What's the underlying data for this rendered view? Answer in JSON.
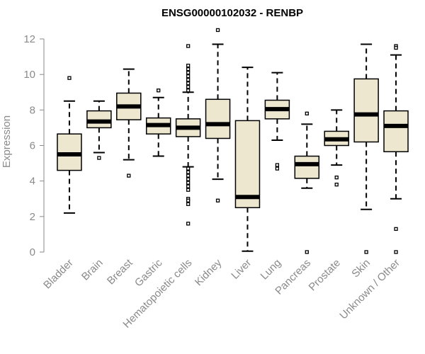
{
  "chart_data": {
    "type": "boxplot",
    "title": "ENSG00000102032 - RENBP",
    "xlabel": "",
    "ylabel": "Expression",
    "ylim": [
      0,
      12
    ],
    "yticks": [
      0,
      2,
      4,
      6,
      8,
      10,
      12
    ],
    "colors": {
      "box_fill": "#ede7cf",
      "box_stroke": "#000000",
      "axis": "#8a8a8a"
    },
    "categories": [
      "Bladder",
      "Brain",
      "Breast",
      "Gastric",
      "Hematopoietic cells",
      "Kidney",
      "Liver",
      "Lung",
      "Pancreas",
      "Prostate",
      "Skin",
      "Unknown / Other"
    ],
    "boxes": [
      {
        "name": "Bladder",
        "whisker_low": 2.2,
        "q1": 4.6,
        "median": 5.5,
        "q3": 6.65,
        "whisker_high": 8.5,
        "outliers": [
          9.8
        ]
      },
      {
        "name": "Brain",
        "whisker_low": 5.6,
        "q1": 7.0,
        "median": 7.35,
        "q3": 7.95,
        "whisker_high": 8.5,
        "outliers": [
          5.3
        ]
      },
      {
        "name": "Breast",
        "whisker_low": 5.2,
        "q1": 7.45,
        "median": 8.2,
        "q3": 8.95,
        "whisker_high": 10.3,
        "outliers": [
          4.3
        ]
      },
      {
        "name": "Gastric",
        "whisker_low": 5.4,
        "q1": 6.65,
        "median": 7.15,
        "q3": 7.55,
        "whisker_high": 8.7,
        "outliers": [
          9.1
        ]
      },
      {
        "name": "Hematopoietic cells",
        "whisker_low": 4.8,
        "q1": 6.5,
        "median": 7.0,
        "q3": 7.5,
        "whisker_high": 9.0,
        "outliers": [
          11.6,
          10.5,
          10.3,
          10.1,
          9.9,
          9.7,
          9.5,
          9.3,
          9.1,
          4.7,
          4.5,
          4.3,
          4.1,
          3.9,
          3.7,
          3.5,
          3.0,
          2.9,
          2.7,
          1.6
        ]
      },
      {
        "name": "Kidney",
        "whisker_low": 4.1,
        "q1": 6.4,
        "median": 7.2,
        "q3": 8.6,
        "whisker_high": 11.7,
        "outliers": [
          12.5,
          2.9
        ]
      },
      {
        "name": "Liver",
        "whisker_low": 0.05,
        "q1": 2.5,
        "median": 3.1,
        "q3": 7.4,
        "whisker_high": 10.4,
        "outliers": []
      },
      {
        "name": "Lung",
        "whisker_low": 6.3,
        "q1": 7.5,
        "median": 8.05,
        "q3": 8.55,
        "whisker_high": 10.1,
        "outliers": [
          4.9,
          4.7
        ]
      },
      {
        "name": "Pancreas",
        "whisker_low": 3.6,
        "q1": 4.15,
        "median": 4.95,
        "q3": 5.4,
        "whisker_high": 7.2,
        "outliers": [
          7.8,
          0.0
        ]
      },
      {
        "name": "Prostate",
        "whisker_low": 4.9,
        "q1": 6.0,
        "median": 6.35,
        "q3": 6.8,
        "whisker_high": 8.0,
        "outliers": [
          4.2,
          3.8
        ]
      },
      {
        "name": "Skin",
        "whisker_low": 2.4,
        "q1": 6.2,
        "median": 7.75,
        "q3": 9.75,
        "whisker_high": 11.7,
        "outliers": [
          0.0
        ]
      },
      {
        "name": "Unknown / Other",
        "whisker_low": 3.0,
        "q1": 5.65,
        "median": 7.1,
        "q3": 7.95,
        "whisker_high": 11.1,
        "outliers": [
          11.6,
          11.5,
          1.3,
          0.0
        ]
      }
    ]
  }
}
